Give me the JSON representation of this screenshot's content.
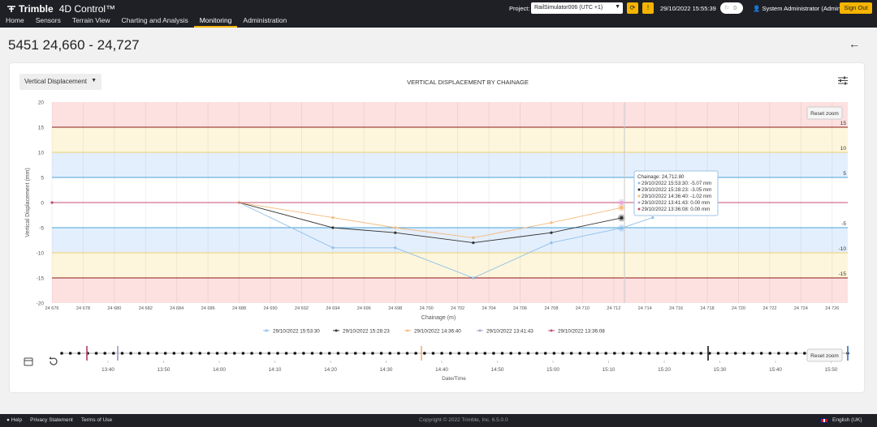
{
  "app": {
    "brand": "Trimble",
    "product": "4D Control™"
  },
  "nav": [
    "Home",
    "Sensors",
    "Terrain View",
    "Charting and Analysis",
    "Monitoring",
    "Administration"
  ],
  "nav_active": 4,
  "topbar": {
    "project_label": "Project:",
    "project_value": "RailSimulator006 (UTC +1)",
    "datetime": "29/10/2022 15:55:39",
    "flag_count": "0",
    "user": "System Administrator (Admin)",
    "signout": "Sign Out"
  },
  "page": {
    "title": "5451 24,660 - 24,727"
  },
  "chart_panel": {
    "dropdown_value": "Vertical Displacement",
    "title": "VERTICAL DISPLACEMENT BY CHAINAGE",
    "reset_zoom": "Reset zoom"
  },
  "chart_data": {
    "type": "line",
    "title": "VERTICAL DISPLACEMENT BY CHAINAGE",
    "xlabel": "Chainage (m)",
    "ylabel": "Vertical Displacement (mm)",
    "xlim": [
      24.676,
      24.727
    ],
    "ylim": [
      -20,
      20
    ],
    "xticks": [
      "24 676",
      "24 678",
      "24 680",
      "24 682",
      "24 684",
      "24 686",
      "24 688",
      "24 690",
      "24 692",
      "24 694",
      "24 696",
      "24 698",
      "24 700",
      "24 702",
      "24 704",
      "24 706",
      "24 708",
      "24 710",
      "24 712",
      "24 714",
      "24 716",
      "24 718",
      "24 720",
      "24 722",
      "24 724",
      "24 726"
    ],
    "yticks": [
      20,
      15,
      10,
      5,
      0,
      -5,
      -10,
      -15,
      -20
    ],
    "bands": [
      {
        "from": 15,
        "to": 20,
        "color": "#fde0e0"
      },
      {
        "from": 10,
        "to": 15,
        "color": "#fdf6dc"
      },
      {
        "from": 5,
        "to": 10,
        "color": "#e4effd"
      },
      {
        "from": -5,
        "to": 5,
        "color": "#ffffff"
      },
      {
        "from": -10,
        "to": -5,
        "color": "#e4effd"
      },
      {
        "from": -15,
        "to": -10,
        "color": "#fdf6dc"
      },
      {
        "from": -20,
        "to": -15,
        "color": "#fde0e0"
      }
    ],
    "limit_lines": [
      {
        "value": 15,
        "label": "15",
        "color": "#8b1a1a"
      },
      {
        "value": 10,
        "label": "10",
        "color": "#f0d070"
      },
      {
        "value": 5,
        "label": "5",
        "color": "#4aa3d8"
      },
      {
        "value": -5,
        "label": "-5",
        "color": "#4aa3d8"
      },
      {
        "value": -10,
        "label": "-10",
        "color": "#f0d070"
      },
      {
        "value": -15,
        "label": "-15",
        "color": "#8b1a1a"
      }
    ],
    "series": [
      {
        "name": "29/10/2022 15:53:30",
        "color": "#8fbfe8",
        "points": [
          [
            24.688,
            0
          ],
          [
            24.694,
            -9
          ],
          [
            24.698,
            -9
          ],
          [
            24.703,
            -15
          ],
          [
            24.708,
            -8
          ],
          [
            24.7125,
            -5.07
          ],
          [
            24.7145,
            -3
          ]
        ]
      },
      {
        "name": "29/10/2022 15:28:23",
        "color": "#333333",
        "points": [
          [
            24.688,
            0
          ],
          [
            24.694,
            -5
          ],
          [
            24.698,
            -6
          ],
          [
            24.703,
            -8
          ],
          [
            24.708,
            -6
          ],
          [
            24.7125,
            -3.05
          ]
        ]
      },
      {
        "name": "29/10/2022 14:36:40",
        "color": "#f5b97a",
        "points": [
          [
            24.688,
            0
          ],
          [
            24.694,
            -3
          ],
          [
            24.698,
            -5
          ],
          [
            24.703,
            -7
          ],
          [
            24.708,
            -4
          ],
          [
            24.7125,
            -1.02
          ]
        ]
      },
      {
        "name": "29/10/2022 13:41:43",
        "color": "#b0a0d0",
        "points": [
          [
            24.676,
            0
          ],
          [
            24.7125,
            0
          ]
        ]
      },
      {
        "name": "29/10/2022 13:36:08",
        "color": "#c05070",
        "points": [
          [
            24.676,
            0
          ],
          [
            24.7125,
            0
          ]
        ]
      }
    ],
    "tooltip": {
      "header": "Chainage: 24,712.80",
      "rows": [
        {
          "text": "29/10/2022 15:53:30: -5.07 mm",
          "color": "#8fbfe8"
        },
        {
          "text": "29/10/2022 15:28:23: -3.05 mm",
          "color": "#333333"
        },
        {
          "text": "29/10/2022 14:36:40: -1.02 mm",
          "color": "#f5b97a"
        },
        {
          "text": "29/10/2022 13:41:43: 0.00 mm",
          "color": "#b0a0d0"
        },
        {
          "text": "29/10/2022 13:36:08: 0.00 mm",
          "color": "#c05070"
        }
      ]
    }
  },
  "timeline": {
    "xlabel": "Date/Time",
    "ticks": [
      "13:40",
      "13:50",
      "14:00",
      "14:10",
      "14:20",
      "14:30",
      "14:40",
      "14:50",
      "15:00",
      "15:10",
      "15:20",
      "15:30",
      "15:40",
      "15:50"
    ],
    "reset_zoom": "Reset zoom"
  },
  "footer": {
    "help": "Help",
    "privacy": "Privacy Statement",
    "terms": "Terms of Use",
    "copyright": "Copyright © 2022  Trimble, Inc.    6.5.0.0",
    "language": "English (UK)"
  }
}
